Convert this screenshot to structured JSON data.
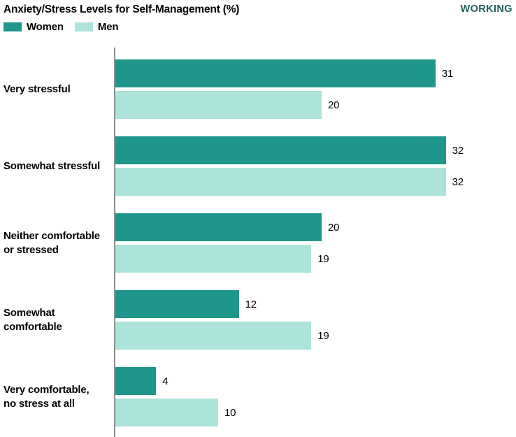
{
  "title": "Anxiety/Stress Levels for Self-Management (%)",
  "tag": "WORKING",
  "tag_color": "#1e5f5c",
  "axis_color": "#8f9191",
  "legend": [
    {
      "label": "Women",
      "color": "#1f968b"
    },
    {
      "label": "Men",
      "color": "#ace3db"
    }
  ],
  "chart_data": {
    "type": "bar",
    "orientation": "horizontal",
    "title": "Anxiety/Stress Levels for Self-Management (%)",
    "categories": [
      "Very stressful",
      "Somewhat stressful",
      "Neither comfortable\nor stressed",
      "Somewhat comfortable",
      "Very comfortable,\nno stress at all"
    ],
    "series": [
      {
        "name": "Women",
        "color": "#1f968b",
        "values": [
          31,
          32,
          20,
          12,
          4
        ]
      },
      {
        "name": "Men",
        "color": "#ace3db",
        "values": [
          20,
          32,
          19,
          19,
          10
        ]
      }
    ],
    "value_labels": true,
    "xlim": [
      0,
      38.8
    ],
    "grid": false,
    "legend_position": "top-left"
  }
}
